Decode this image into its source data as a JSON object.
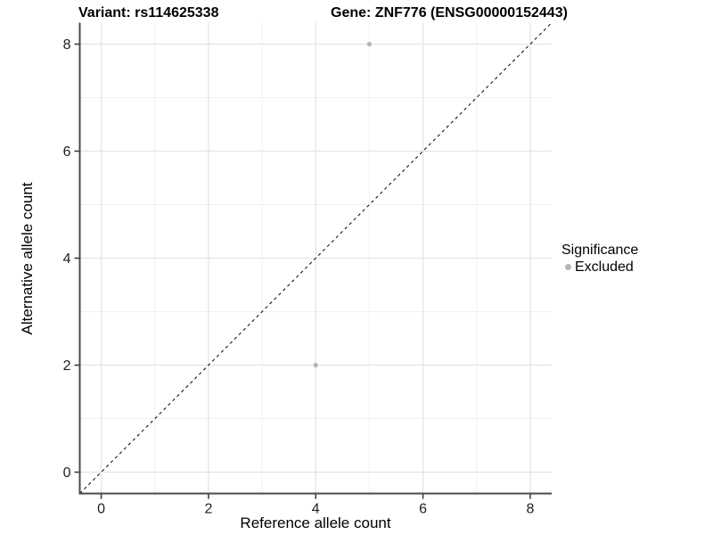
{
  "header": {
    "variant_title": "Variant: rs114625338",
    "gene_title": "Gene: ZNF776 (ENSG00000152443)"
  },
  "legend": {
    "title": "Significance",
    "items": [
      {
        "label": "Excluded",
        "color": "#b5b5b5"
      }
    ]
  },
  "chart_data": {
    "type": "scatter",
    "title": "Variant: rs114625338 / Gene: ZNF776 (ENSG00000152443)",
    "xlabel": "Reference allele count",
    "ylabel": "Alternative allele count",
    "xlim": [
      -0.4,
      8.4
    ],
    "ylim": [
      -0.4,
      8.4
    ],
    "x_ticks": [
      0,
      2,
      4,
      6,
      8
    ],
    "y_ticks": [
      0,
      2,
      4,
      6,
      8
    ],
    "x_minor_ticks": [
      1,
      3,
      5,
      7
    ],
    "y_minor_ticks": [
      1,
      3,
      5,
      7
    ],
    "grid": "on",
    "legend_position": "right",
    "series": [
      {
        "name": "Excluded",
        "color": "#b5b5b5",
        "points": [
          {
            "x": 5,
            "y": 8
          },
          {
            "x": 4,
            "y": 2
          }
        ]
      }
    ],
    "reference_line": {
      "slope": 1,
      "intercept": 0,
      "style": "dashed",
      "color": "#000000"
    }
  },
  "colors": {
    "axis_line": "#4a4a4a",
    "tick_mark": "#333333",
    "tick_label": "#1f1f1f",
    "grid_major": "#e3e3e3",
    "grid_minor": "#f1f1f1",
    "point": "#b5b5b5",
    "background": "#ffffff"
  }
}
